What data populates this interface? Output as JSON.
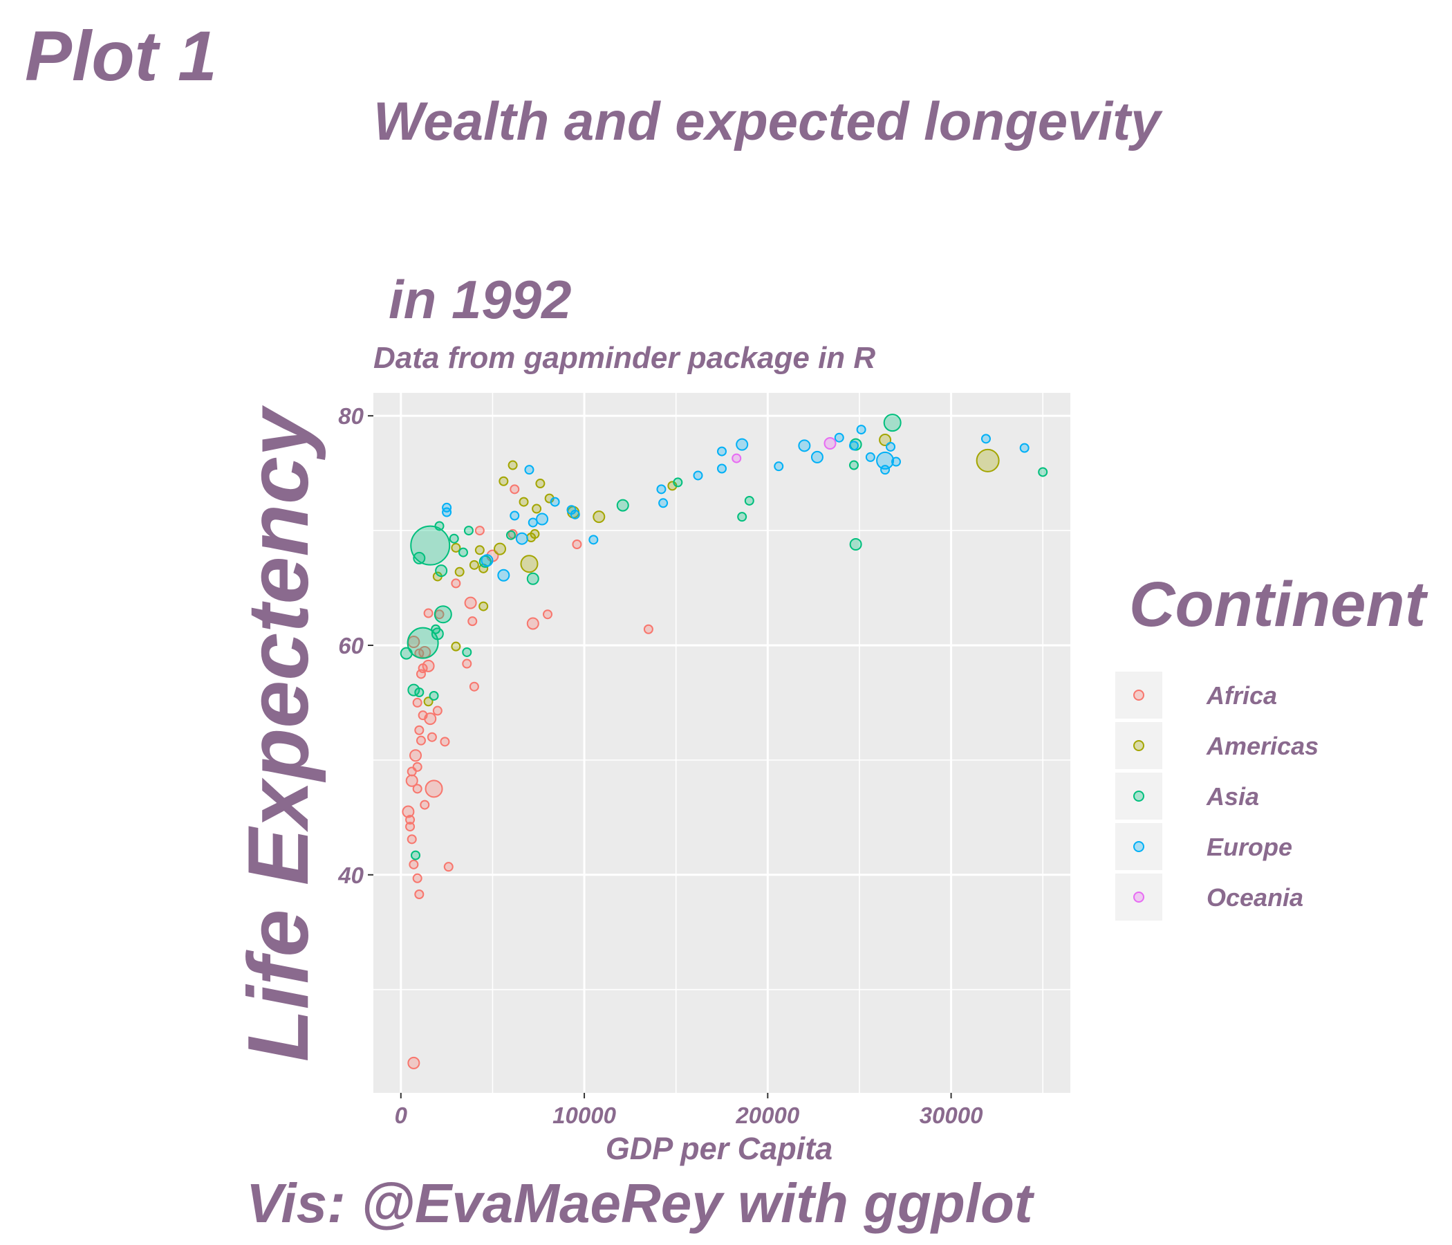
{
  "tag": "Plot 1",
  "title_line1": "Wealth and expected longevity",
  "title_line2": "in 1992",
  "subtitle": "Data from gapminder package in R",
  "caption": "Vis: @EvaMaeRey with ggplot",
  "colors": {
    "text": "#8a6a8e",
    "panel": "#ebebeb",
    "grid": "#ffffff",
    "Africa": "#F8766D",
    "Americas": "#A3A500",
    "Asia": "#00BF7D",
    "Europe": "#00B0F6",
    "Oceania": "#E76BF3"
  },
  "chart_data": {
    "type": "scatter",
    "xlabel": "GDP per Capita",
    "ylabel": "Life Expectency",
    "xlim": [
      -1500,
      36500
    ],
    "ylim": [
      21,
      82
    ],
    "x_ticks": [
      0,
      10000,
      20000,
      30000
    ],
    "x_tick_labels": [
      "0",
      "10000",
      "20000",
      "30000"
    ],
    "y_ticks": [
      40,
      60,
      80
    ],
    "y_tick_labels": [
      "40",
      "60",
      "80"
    ],
    "grid": true,
    "legend": {
      "title": "Continent",
      "position": "right",
      "entries": [
        "Africa",
        "Americas",
        "Asia",
        "Europe",
        "Oceania"
      ]
    },
    "size_encoding": "population",
    "series": [
      {
        "name": "Africa",
        "points": [
          [
            700,
            23.6,
            2
          ],
          [
            600,
            48.2,
            2
          ],
          [
            800,
            50.4,
            2
          ],
          [
            900,
            47.5,
            1
          ],
          [
            1000,
            52.6,
            1
          ],
          [
            1100,
            57.5,
            1
          ],
          [
            1300,
            59.4,
            2
          ],
          [
            1500,
            58.2,
            2
          ],
          [
            1600,
            53.6,
            2
          ],
          [
            1700,
            52.0,
            1
          ],
          [
            2000,
            54.3,
            1
          ],
          [
            1200,
            53.9,
            1
          ],
          [
            700,
            60.3,
            2
          ],
          [
            900,
            49.4,
            1
          ],
          [
            600,
            49.0,
            1
          ],
          [
            500,
            44.8,
            1
          ],
          [
            400,
            45.5,
            2
          ],
          [
            500,
            44.2,
            1
          ],
          [
            600,
            43.1,
            1
          ],
          [
            700,
            40.9,
            1
          ],
          [
            900,
            39.7,
            1
          ],
          [
            1000,
            38.3,
            1
          ],
          [
            1300,
            46.1,
            1
          ],
          [
            1800,
            47.5,
            3
          ],
          [
            2400,
            51.6,
            1
          ],
          [
            2600,
            40.7,
            1
          ],
          [
            3000,
            65.4,
            1
          ],
          [
            3600,
            58.4,
            1
          ],
          [
            3900,
            62.1,
            1
          ],
          [
            3800,
            63.7,
            2
          ],
          [
            4300,
            70.0,
            1
          ],
          [
            5000,
            67.8,
            2
          ],
          [
            6100,
            69.7,
            1
          ],
          [
            6200,
            73.6,
            1
          ],
          [
            7200,
            61.9,
            2
          ],
          [
            8000,
            62.7,
            1
          ],
          [
            9600,
            68.8,
            1
          ],
          [
            13500,
            61.4,
            1
          ],
          [
            4000,
            56.4,
            1
          ],
          [
            1500,
            62.8,
            1
          ],
          [
            1100,
            51.7,
            1
          ],
          [
            1000,
            59.3,
            1
          ],
          [
            1200,
            58.0,
            1
          ],
          [
            2100,
            62.7,
            1
          ],
          [
            900,
            55.0,
            1
          ]
        ]
      },
      {
        "name": "Americas",
        "points": [
          [
            2000,
            66.0,
            1
          ],
          [
            3000,
            59.9,
            1
          ],
          [
            3200,
            66.4,
            1
          ],
          [
            4300,
            68.3,
            1
          ],
          [
            4500,
            66.7,
            1
          ],
          [
            4500,
            63.4,
            1
          ],
          [
            5400,
            68.4,
            2
          ],
          [
            5600,
            74.3,
            1
          ],
          [
            6100,
            75.7,
            1
          ],
          [
            6700,
            72.5,
            1
          ],
          [
            7000,
            67.1,
            3
          ],
          [
            7100,
            69.4,
            1
          ],
          [
            7300,
            69.7,
            1
          ],
          [
            7400,
            71.9,
            1
          ],
          [
            7600,
            74.1,
            1
          ],
          [
            8100,
            72.8,
            1
          ],
          [
            9400,
            71.6,
            2
          ],
          [
            10800,
            71.2,
            2
          ],
          [
            14800,
            73.9,
            1
          ],
          [
            26400,
            77.9,
            2
          ],
          [
            32000,
            76.1,
            4
          ],
          [
            3000,
            68.5,
            1
          ],
          [
            1500,
            55.1,
            1
          ],
          [
            4000,
            67.0,
            1
          ]
        ]
      },
      {
        "name": "Asia",
        "points": [
          [
            300,
            59.3,
            2
          ],
          [
            700,
            56.1,
            2
          ],
          [
            1000,
            55.9,
            1
          ],
          [
            800,
            41.7,
            1
          ],
          [
            1200,
            60.2,
            5
          ],
          [
            1600,
            68.7,
            6
          ],
          [
            1000,
            67.6,
            2
          ],
          [
            2000,
            61.0,
            2
          ],
          [
            2300,
            62.7,
            3
          ],
          [
            2100,
            70.4,
            1
          ],
          [
            2200,
            66.5,
            2
          ],
          [
            2900,
            69.3,
            1
          ],
          [
            3600,
            59.4,
            1
          ],
          [
            3400,
            68.1,
            1
          ],
          [
            3700,
            70.0,
            1
          ],
          [
            4600,
            67.3,
            2
          ],
          [
            6000,
            69.6,
            1
          ],
          [
            7200,
            65.8,
            2
          ],
          [
            12100,
            72.2,
            2
          ],
          [
            15100,
            74.2,
            1
          ],
          [
            18600,
            71.2,
            1
          ],
          [
            19000,
            72.6,
            1
          ],
          [
            24700,
            75.7,
            1
          ],
          [
            24800,
            68.8,
            2
          ],
          [
            24800,
            77.5,
            2
          ],
          [
            26800,
            79.4,
            3
          ],
          [
            35000,
            75.1,
            1
          ],
          [
            1800,
            55.6,
            1
          ],
          [
            1900,
            61.4,
            1
          ]
        ]
      },
      {
        "name": "Europe",
        "points": [
          [
            2500,
            72.0,
            1
          ],
          [
            2500,
            71.6,
            1
          ],
          [
            4700,
            67.4,
            2
          ],
          [
            5600,
            66.1,
            2
          ],
          [
            6200,
            71.3,
            1
          ],
          [
            6600,
            69.3,
            2
          ],
          [
            7000,
            75.3,
            1
          ],
          [
            7200,
            70.7,
            1
          ],
          [
            7700,
            71.0,
            2
          ],
          [
            8400,
            72.5,
            1
          ],
          [
            9300,
            71.8,
            1
          ],
          [
            9500,
            71.4,
            1
          ],
          [
            10500,
            69.2,
            1
          ],
          [
            14200,
            73.6,
            1
          ],
          [
            14300,
            72.4,
            1
          ],
          [
            16200,
            74.8,
            1
          ],
          [
            17500,
            76.9,
            1
          ],
          [
            17500,
            75.4,
            1
          ],
          [
            18600,
            77.5,
            2
          ],
          [
            20600,
            75.6,
            1
          ],
          [
            22000,
            77.4,
            2
          ],
          [
            22700,
            76.4,
            2
          ],
          [
            23900,
            78.1,
            1
          ],
          [
            25100,
            78.8,
            1
          ],
          [
            24700,
            77.4,
            1
          ],
          [
            25600,
            76.4,
            1
          ],
          [
            26400,
            75.3,
            1
          ],
          [
            26400,
            76.1,
            3
          ],
          [
            26700,
            77.3,
            1
          ],
          [
            27000,
            76.0,
            1
          ],
          [
            31900,
            78.0,
            1
          ],
          [
            34000,
            77.2,
            1
          ]
        ]
      },
      {
        "name": "Oceania",
        "points": [
          [
            18300,
            76.3,
            1
          ],
          [
            23400,
            77.6,
            2
          ]
        ]
      }
    ]
  }
}
